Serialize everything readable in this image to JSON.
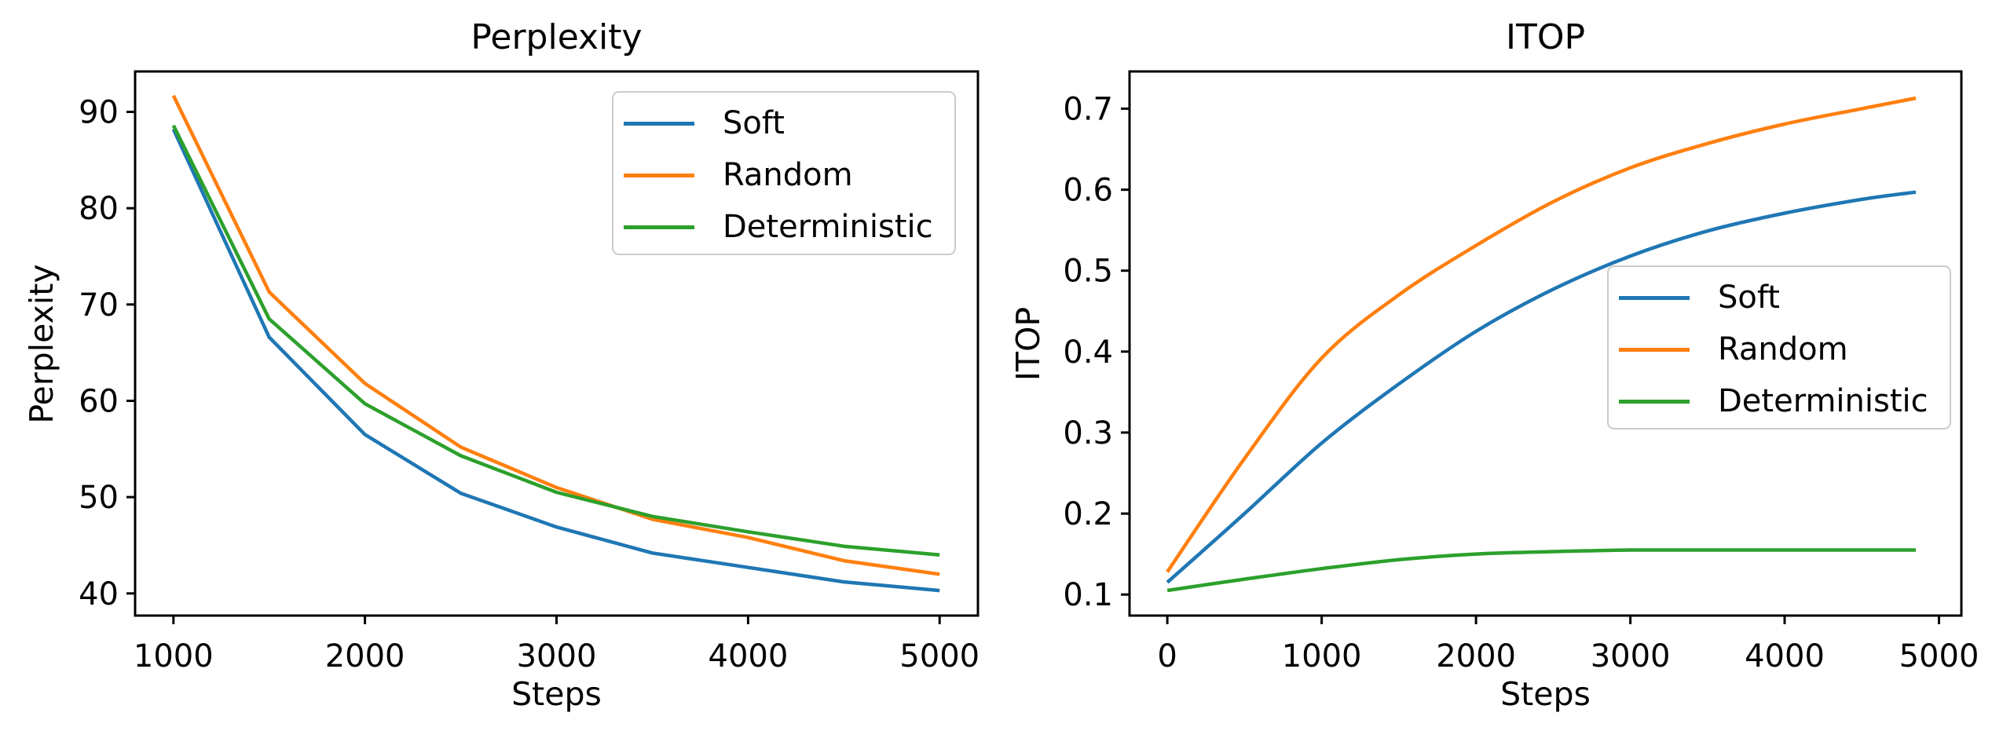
{
  "figure": {
    "background": "#ffffff",
    "text_color": "#000000",
    "legend_border_color": "#cccccc"
  },
  "chart_data": [
    {
      "type": "line",
      "title": "Perplexity",
      "xlabel": "Steps",
      "ylabel": "Perplexity",
      "grid": false,
      "legend_position": "upper right",
      "legend_entries": [
        "Soft",
        "Random",
        "Deterministic"
      ],
      "xlim": [
        800,
        5200
      ],
      "ylim": [
        37.7,
        94.2
      ],
      "xtick_values": [
        1000,
        2000,
        3000,
        4000,
        5000
      ],
      "xtick_labels": [
        "1000",
        "2000",
        "3000",
        "4000",
        "5000"
      ],
      "ytick_values": [
        40,
        50,
        60,
        70,
        80,
        90
      ],
      "ytick_labels": [
        "40",
        "50",
        "60",
        "70",
        "80",
        "90"
      ],
      "x": [
        1000,
        1500,
        2000,
        2500,
        3000,
        3500,
        4000,
        4500,
        5000
      ],
      "series": [
        {
          "name": "Soft",
          "color": "#1f77b4",
          "smooth": false,
          "values": [
            88.2,
            66.6,
            56.5,
            50.4,
            46.9,
            44.2,
            42.7,
            41.2,
            40.3
          ]
        },
        {
          "name": "Random",
          "color": "#ff7f0e",
          "smooth": false,
          "values": [
            91.7,
            71.3,
            61.8,
            55.2,
            51.0,
            47.7,
            45.8,
            43.4,
            42.0
          ]
        },
        {
          "name": "Deterministic",
          "color": "#2ca02c",
          "smooth": false,
          "values": [
            88.6,
            68.5,
            59.7,
            54.3,
            50.5,
            48.0,
            46.4,
            44.9,
            44.0
          ]
        }
      ]
    },
    {
      "type": "line",
      "title": "ITOP",
      "xlabel": "Steps",
      "ylabel": "ITOP",
      "grid": false,
      "legend_position": "center right",
      "legend_entries": [
        "Soft",
        "Random",
        "Deterministic"
      ],
      "xlim": [
        -245,
        5145
      ],
      "ylim": [
        0.074,
        0.746
      ],
      "xtick_values": [
        0,
        1000,
        2000,
        3000,
        4000,
        5000
      ],
      "xtick_labels": [
        "0",
        "1000",
        "2000",
        "3000",
        "4000",
        "5000"
      ],
      "ytick_values": [
        0.1,
        0.2,
        0.3,
        0.4,
        0.5,
        0.6,
        0.7
      ],
      "ytick_labels": [
        "0.1",
        "0.2",
        "0.3",
        "0.4",
        "0.5",
        "0.6",
        "0.7"
      ],
      "x": [
        0,
        500,
        1000,
        1500,
        2000,
        2500,
        3000,
        3500,
        4000,
        4500,
        4850
      ],
      "series": [
        {
          "name": "Soft",
          "color": "#1f77b4",
          "smooth": true,
          "values": [
            0.115,
            0.2,
            0.287,
            0.36,
            0.425,
            0.477,
            0.518,
            0.549,
            0.571,
            0.588,
            0.597
          ]
        },
        {
          "name": "Random",
          "color": "#ff7f0e",
          "smooth": true,
          "values": [
            0.128,
            0.268,
            0.392,
            0.47,
            0.531,
            0.585,
            0.627,
            0.657,
            0.681,
            0.7,
            0.713
          ]
        },
        {
          "name": "Deterministic",
          "color": "#2ca02c",
          "smooth": true,
          "values": [
            0.105,
            0.119,
            0.132,
            0.143,
            0.15,
            0.153,
            0.155,
            0.155,
            0.155,
            0.155,
            0.155
          ]
        }
      ]
    }
  ]
}
